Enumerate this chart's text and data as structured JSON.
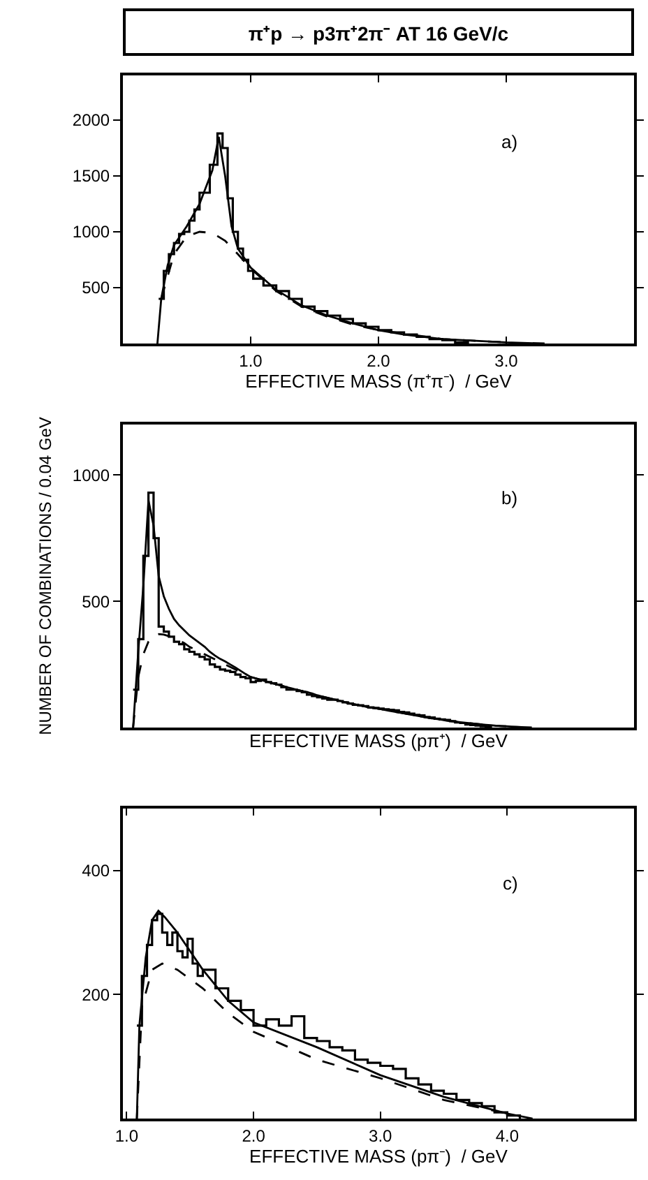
{
  "chart_data": [
    {
      "type": "step",
      "title": "π⁺p → p3π⁺2π⁻     AT 16 GeV/c",
      "xlabel": "EFFECTIVE MASS (π⁺π⁻)  / GeV",
      "annotations": [
        "a)"
      ],
      "xlim": [
        0,
        4.0
      ],
      "ylim": [
        0,
        2400
      ],
      "xticks": [
        {
          "value": 1,
          "label": "1.0"
        },
        {
          "value": 2,
          "label": "2.0"
        },
        {
          "value": 3,
          "label": "3.0"
        }
      ],
      "yticks": [
        500,
        1000,
        1500,
        2000
      ],
      "series": [
        {
          "type": "step",
          "color": "#000000",
          "x": [
            0.28,
            0.32,
            0.36,
            0.4,
            0.44,
            0.48,
            0.52,
            0.56,
            0.6,
            0.64,
            0.68,
            0.72,
            0.74,
            0.78,
            0.82,
            0.86,
            0.9,
            0.94,
            0.98,
            1.02,
            1.1,
            1.2,
            1.3,
            1.4,
            1.5,
            1.6,
            1.7,
            1.8,
            1.9,
            2.0,
            2.1,
            2.2,
            2.3,
            2.4,
            2.5,
            2.6,
            2.7
          ],
          "values": [
            400,
            650,
            800,
            900,
            980,
            1000,
            1100,
            1200,
            1350,
            1350,
            1600,
            1600,
            1880,
            1750,
            1300,
            1000,
            850,
            750,
            650,
            580,
            520,
            470,
            400,
            330,
            290,
            250,
            220,
            180,
            150,
            120,
            100,
            80,
            60,
            40,
            30,
            10,
            0
          ]
        },
        {
          "type": "line",
          "color": "#000000",
          "line_style": "solid",
          "x": [
            0.27,
            0.3,
            0.35,
            0.4,
            0.5,
            0.6,
            0.7,
            0.75,
            0.8,
            0.85,
            0.9,
            1.0,
            1.2,
            1.4,
            1.6,
            1.8,
            2.0,
            2.2,
            2.5,
            3.0,
            3.3
          ],
          "values": [
            0,
            400,
            700,
            880,
            1050,
            1250,
            1550,
            1850,
            1500,
            1050,
            850,
            680,
            480,
            340,
            250,
            180,
            120,
            80,
            40,
            10,
            0
          ]
        },
        {
          "type": "line",
          "color": "#000000",
          "line_style": "dashed",
          "x": [
            0.3,
            0.4,
            0.5,
            0.6,
            0.7,
            0.8,
            0.9,
            1.0,
            1.2,
            1.4,
            1.6,
            1.8,
            2.0,
            2.5,
            3.0
          ],
          "values": [
            400,
            800,
            960,
            1000,
            990,
            920,
            800,
            670,
            470,
            330,
            240,
            170,
            120,
            40,
            10
          ]
        }
      ]
    },
    {
      "type": "step",
      "xlabel": "EFFECTIVE MASS (pπ⁺)  / GeV",
      "ylabel": "NUMBER OF COMBINATIONS / 0.04 GeV",
      "annotations": [
        "b)"
      ],
      "categories": [
        null,
        null,
        null,
        null,
        null,
        null,
        null,
        null,
        null,
        null,
        null,
        null,
        null,
        null,
        null,
        null,
        null,
        null,
        null,
        null,
        null,
        null,
        null,
        null,
        null,
        null,
        null,
        null,
        null,
        null,
        null,
        null,
        null,
        null,
        null,
        null,
        null,
        null,
        null,
        null,
        null,
        null,
        null,
        null,
        null,
        null,
        null,
        null,
        null,
        null,
        null,
        null,
        null,
        null,
        null,
        null,
        null,
        null,
        null,
        null,
        null,
        null,
        null,
        null,
        null,
        null,
        null,
        null,
        null,
        null,
        null,
        null,
        null,
        null,
        null,
        null,
        null,
        null,
        null,
        null
      ],
      "ylim": [
        0,
        1200
      ],
      "yticks": [
        500,
        1000
      ],
      "tick_labels": "y",
      "series": [
        {
          "type": "step",
          "color": "#000000",
          "values": [
            null,
            150,
            350,
            680,
            930,
            750,
            400,
            380,
            360,
            340,
            330,
            310,
            300,
            290,
            280,
            270,
            250,
            240,
            230,
            225,
            220,
            210,
            200,
            195,
            180,
            185,
            190,
            180,
            175,
            170,
            160,
            150,
            150,
            145,
            140,
            130,
            125,
            120,
            115,
            110,
            110,
            105,
            100,
            95,
            90,
            88,
            85,
            80,
            78,
            75,
            72,
            70,
            68,
            62,
            60,
            55,
            50,
            48,
            42,
            40,
            35,
            32,
            30,
            25,
            20,
            18,
            12,
            10,
            8,
            5,
            3,
            0,
            null,
            null,
            null,
            null,
            null,
            null,
            null,
            null
          ]
        },
        {
          "type": "line",
          "color": "#000000",
          "line_style": "solid",
          "values": [
            null,
            0,
            300,
            560,
            900,
            800,
            600,
            520,
            470,
            430,
            405,
            385,
            365,
            350,
            335,
            320,
            300,
            285,
            272,
            262,
            250,
            238,
            225,
            212,
            200,
            195,
            189,
            183,
            177,
            172,
            166,
            160,
            155,
            150,
            145,
            140,
            135,
            128,
            123,
            118,
            113,
            108,
            103,
            98,
            93,
            89,
            85,
            80,
            78,
            75,
            71,
            67,
            63,
            60,
            56,
            52,
            49,
            45,
            42,
            38,
            35,
            32,
            29,
            26,
            24,
            21,
            19,
            17,
            15,
            13,
            11,
            9,
            7,
            6,
            5,
            4,
            3,
            2,
            1,
            0
          ]
        },
        {
          "type": "line",
          "color": "#000000",
          "line_style": "dashed",
          "values": [
            null,
            0,
            200,
            290,
            340,
            365,
            370,
            368,
            362,
            355,
            345,
            335,
            320,
            310,
            300,
            290,
            280,
            270,
            260,
            250,
            240,
            230,
            220,
            210,
            200,
            195,
            189,
            183,
            177,
            172,
            166,
            160,
            155,
            150,
            145,
            140,
            135,
            128,
            123,
            118,
            113,
            108,
            103,
            98,
            93,
            89,
            85,
            80,
            78,
            75,
            71,
            67,
            63,
            60,
            56,
            52,
            49,
            45,
            42,
            38,
            35,
            32,
            29,
            26,
            24,
            21,
            19,
            17,
            15,
            13,
            11,
            9,
            7,
            6,
            5,
            null,
            null,
            null,
            null,
            null
          ]
        }
      ]
    },
    {
      "type": "step",
      "xlabel": "EFFECTIVE MASS (pπ⁻)  / GeV",
      "annotations": [
        "c)"
      ],
      "xlim": [
        0.97,
        5.0
      ],
      "ylim": [
        0,
        500
      ],
      "xticks": [
        {
          "value": 1,
          "label": "1.0"
        },
        {
          "value": 2,
          "label": "2.0"
        },
        {
          "value": 3,
          "label": "3.0"
        },
        {
          "value": 4,
          "label": "4.0"
        }
      ],
      "yticks": [
        200,
        400
      ],
      "series": [
        {
          "type": "step",
          "color": "#000000",
          "x": [
            1.08,
            1.12,
            1.16,
            1.2,
            1.24,
            1.28,
            1.32,
            1.36,
            1.4,
            1.44,
            1.48,
            1.52,
            1.56,
            1.6,
            1.7,
            1.8,
            1.9,
            2.0,
            2.1,
            2.2,
            2.3,
            2.4,
            2.5,
            2.6,
            2.7,
            2.8,
            2.9,
            3.0,
            3.1,
            3.2,
            3.3,
            3.4,
            3.5,
            3.6,
            3.7,
            3.8,
            3.9,
            4.0,
            4.1
          ],
          "values": [
            150,
            230,
            280,
            320,
            330,
            300,
            280,
            300,
            270,
            260,
            290,
            250,
            230,
            240,
            210,
            190,
            175,
            150,
            160,
            150,
            165,
            130,
            125,
            115,
            110,
            95,
            90,
            85,
            80,
            65,
            55,
            45,
            40,
            30,
            25,
            20,
            10,
            5,
            0
          ]
        },
        {
          "type": "line",
          "color": "#000000",
          "line_style": "solid",
          "x": [
            1.08,
            1.1,
            1.15,
            1.2,
            1.25,
            1.3,
            1.4,
            1.5,
            1.6,
            1.8,
            2.0,
            2.5,
            3.0,
            3.5,
            4.0,
            4.2
          ],
          "values": [
            0,
            150,
            260,
            320,
            335,
            325,
            300,
            270,
            240,
            190,
            155,
            115,
            70,
            35,
            8,
            0
          ]
        },
        {
          "type": "line",
          "color": "#000000",
          "line_style": "dashed",
          "x": [
            1.08,
            1.12,
            1.2,
            1.28,
            1.4,
            1.6,
            1.8,
            2.0,
            2.5,
            3.0,
            3.5,
            4.0
          ],
          "values": [
            0,
            180,
            240,
            250,
            240,
            210,
            170,
            140,
            95,
            65,
            30,
            8
          ]
        }
      ]
    }
  ]
}
